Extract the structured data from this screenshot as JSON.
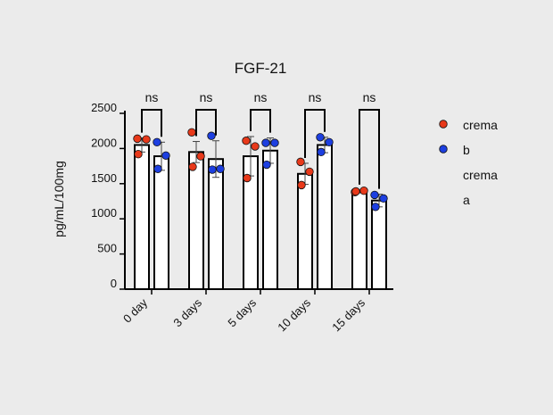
{
  "chart_data": {
    "type": "bar",
    "title": "FGF-21",
    "ylabel": "pg/mL/100mg",
    "xlabel": "",
    "ylim": [
      0,
      2500
    ],
    "yticks": [
      0,
      500,
      1000,
      1500,
      2000,
      2500
    ],
    "grid": false,
    "legend_position": "right",
    "categories": [
      "0 day",
      "3 days",
      "5 days",
      "10 days",
      "15 days"
    ],
    "significance": [
      "ns",
      "ns",
      "ns",
      "ns",
      "ns"
    ],
    "series": [
      {
        "name": "crema b",
        "color": "#e8391a",
        "means": [
          2050,
          1950,
          1890,
          1640,
          1390
        ],
        "errors": [
          100,
          150,
          280,
          150,
          20
        ],
        "points": [
          [
            2140,
            2130,
            1920
          ],
          [
            2230,
            1890,
            1740
          ],
          [
            2110,
            2030,
            1580
          ],
          [
            1810,
            1670,
            1480
          ],
          [
            1380,
            1400,
            1390
          ]
        ]
      },
      {
        "name": "crema a",
        "color": "#1d3fe0",
        "means": [
          1890,
          1850,
          1970,
          2050,
          1260
        ],
        "errors": [
          200,
          260,
          180,
          110,
          90
        ],
        "points": [
          [
            2090,
            1900,
            1710
          ],
          [
            2180,
            1710,
            1700
          ],
          [
            2080,
            2080,
            1770
          ],
          [
            2160,
            2090,
            1950
          ],
          [
            1340,
            1290,
            1170
          ]
        ]
      }
    ]
  }
}
